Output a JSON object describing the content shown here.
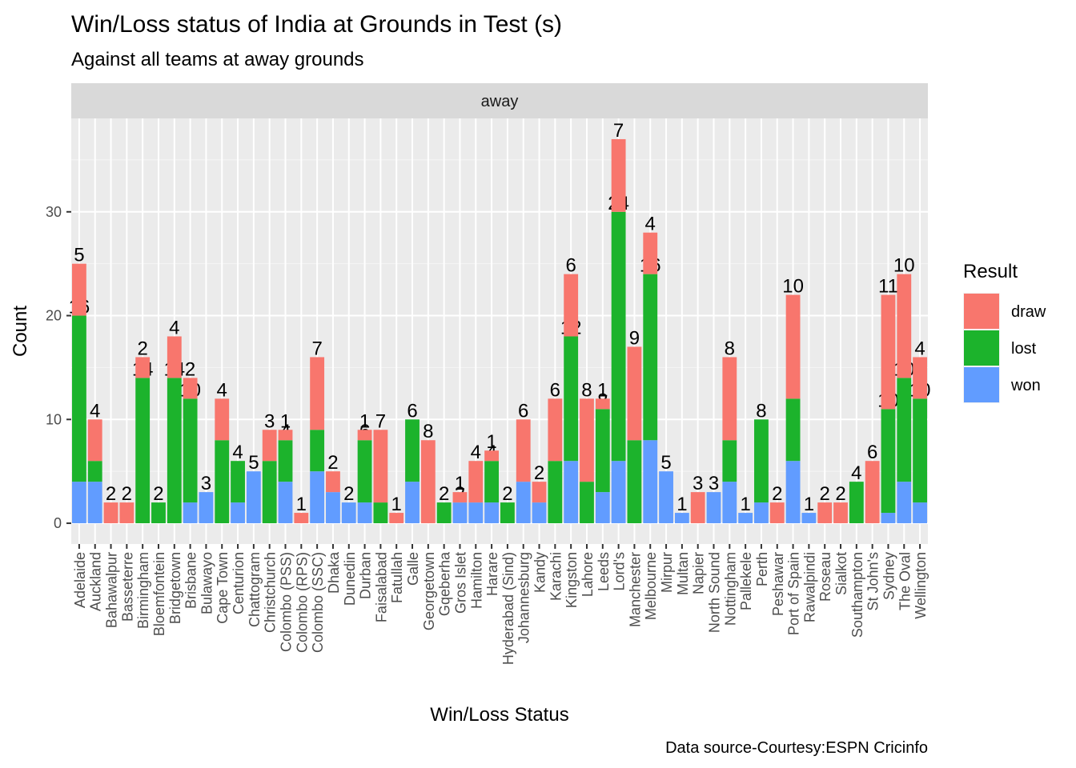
{
  "chart_data": {
    "type": "bar",
    "stacked": true,
    "title": "Win/Loss status of India at Grounds in Test (s)",
    "subtitle": "Against all  teams at away grounds",
    "facet_label": "away",
    "xlabel": "Win/Loss Status",
    "ylabel": "Count",
    "ylim": [
      -2,
      39
    ],
    "yticks": [
      0,
      10,
      20,
      30
    ],
    "grid": true,
    "legend": {
      "title": "Result",
      "position": "right",
      "entries": [
        "draw",
        "lost",
        "won"
      ]
    },
    "colors": {
      "draw": "#F8766D",
      "lost": "#1CB32C",
      "won": "#619CFF"
    },
    "caption": "Data source-Courtesy:ESPN Cricinfo",
    "categories": [
      "Adelaide",
      "Auckland",
      "Bahawalpur",
      "Basseterre",
      "Birmingham",
      "Bloemfontein",
      "Bridgetown",
      "Brisbane",
      "Bulawayo",
      "Cape Town",
      "Centurion",
      "Chattogram",
      "Christchurch",
      "Colombo (PSS)",
      "Colombo (RPS)",
      "Colombo (SSC)",
      "Dhaka",
      "Dunedin",
      "Durban",
      "Faisalabad",
      "Fatullah",
      "Galle",
      "Georgetown",
      "Gqeberha",
      "Gros Islet",
      "Hamilton",
      "Harare",
      "Hyderabad (Sind)",
      "Johannesburg",
      "Kandy",
      "Karachi",
      "Kingston",
      "Lahore",
      "Leeds",
      "Lord's",
      "Manchester",
      "Melbourne",
      "Mirpur",
      "Multan",
      "Napier",
      "North Sound",
      "Nottingham",
      "Pallekele",
      "Perth",
      "Peshawar",
      "Port of Spain",
      "Rawalpindi",
      "Roseau",
      "Sialkot",
      "Southampton",
      "St John's",
      "Sydney",
      "The Oval",
      "Wellington"
    ],
    "series": [
      {
        "name": "won",
        "values": [
          4,
          4,
          0,
          0,
          0,
          0,
          0,
          2,
          3,
          0,
          2,
          5,
          0,
          4,
          0,
          5,
          3,
          2,
          2,
          0,
          0,
          4,
          0,
          0,
          2,
          2,
          2,
          0,
          4,
          2,
          0,
          6,
          0,
          3,
          6,
          0,
          8,
          5,
          1,
          0,
          3,
          4,
          1,
          2,
          0,
          6,
          1,
          0,
          0,
          0,
          0,
          1,
          4,
          2
        ]
      },
      {
        "name": "lost",
        "values": [
          16,
          2,
          0,
          0,
          14,
          2,
          14,
          10,
          0,
          8,
          4,
          0,
          6,
          4,
          0,
          4,
          0,
          0,
          6,
          2,
          0,
          6,
          0,
          2,
          0,
          0,
          4,
          2,
          0,
          0,
          6,
          12,
          4,
          8,
          24,
          8,
          16,
          0,
          0,
          0,
          0,
          4,
          0,
          8,
          0,
          6,
          0,
          0,
          0,
          4,
          0,
          10,
          10,
          10
        ]
      },
      {
        "name": "draw",
        "values": [
          5,
          4,
          2,
          2,
          2,
          0,
          4,
          2,
          0,
          4,
          0,
          0,
          3,
          1,
          1,
          7,
          2,
          0,
          1,
          7,
          1,
          0,
          8,
          0,
          1,
          4,
          1,
          0,
          6,
          2,
          6,
          6,
          8,
          1,
          7,
          9,
          4,
          0,
          0,
          3,
          0,
          8,
          0,
          0,
          2,
          10,
          0,
          2,
          2,
          0,
          6,
          11,
          10,
          4
        ]
      }
    ]
  }
}
